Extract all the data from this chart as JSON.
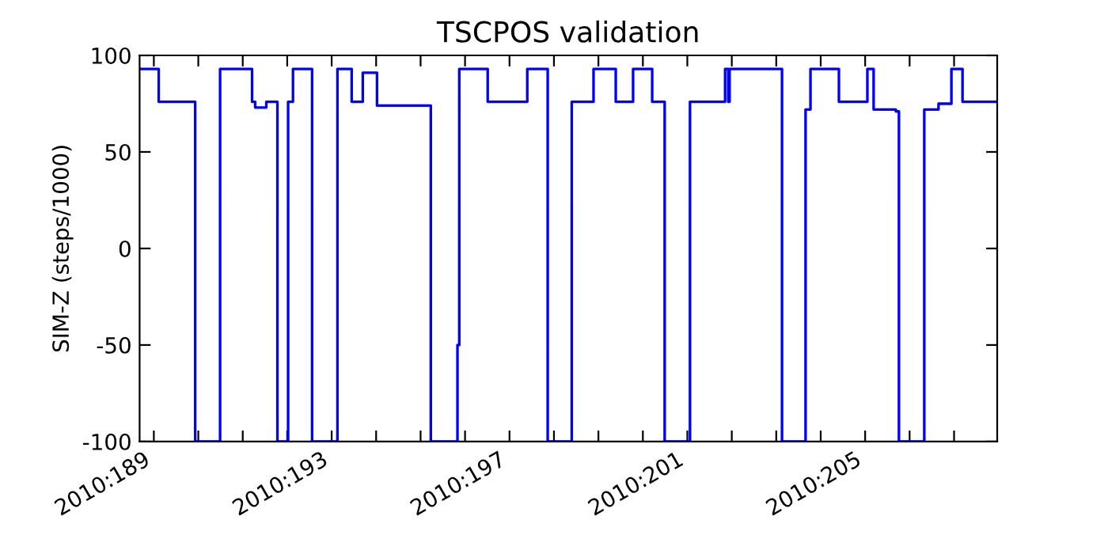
{
  "chart_data": {
    "type": "step",
    "title": "TSCPOS validation",
    "ylabel": "SIM-Z (steps/1000)",
    "x": [
      "2010-07-07T16:19",
      "2010-07-08T02:38",
      "2010-07-08T22:19",
      "2010-07-09T11:46",
      "2010-07-10T05:02",
      "2010-07-10T06:43",
      "2010-07-10T12:43",
      "2010-07-10T18:43",
      "2010-07-11T00:29",
      "2010-07-11T03:07",
      "2010-07-11T13:26",
      "2010-07-12T03:07",
      "2010-07-12T10:48",
      "2010-07-12T16:48",
      "2010-07-13T00:29",
      "2010-07-14T05:31",
      "2010-07-14T19:55",
      "2010-07-14T20:53",
      "2010-07-15T12:14",
      "2010-07-16T09:36",
      "2010-07-16T20:38",
      "2010-07-17T09:36",
      "2010-07-17T21:22",
      "2010-07-18T09:22",
      "2010-07-18T18:43",
      "2010-07-19T05:02",
      "2010-07-19T11:46",
      "2010-07-20T01:26",
      "2010-07-20T20:24",
      "2010-07-20T22:05",
      "2010-07-20T22:48",
      "2010-07-22T03:07",
      "2010-07-22T15:50",
      "2010-07-22T18:29",
      "2010-07-23T09:50",
      "2010-07-24T01:12",
      "2010-07-24T04:34",
      "2010-07-24T16:34",
      "2010-07-24T18:14",
      "2010-07-25T07:55",
      "2010-07-25T15:36",
      "2010-07-25T22:34",
      "2010-07-26T04:34",
      "2010-07-26T23:17"
    ],
    "series": [
      {
        "color": "#0000ff",
        "values": [
          93,
          76,
          -100,
          93,
          76,
          73,
          76,
          -100,
          76,
          93,
          -100,
          93,
          76,
          91,
          74,
          -100,
          -50,
          93,
          76,
          93,
          -100,
          76,
          93,
          76,
          93,
          76,
          -100,
          76,
          93,
          76,
          93,
          -100,
          72,
          93,
          76,
          93,
          72,
          71,
          -100,
          72,
          75,
          93,
          76,
          76
        ]
      }
    ],
    "xlim": [
      "2010-07-07T16:19",
      "2010-07-26T23:17"
    ],
    "ylim": [
      -100,
      100
    ],
    "yticks": [
      -100,
      -50,
      0,
      50,
      100
    ],
    "xticks": [
      {
        "value": "2010-07-08",
        "label": "2010:189"
      },
      {
        "value": "2010-07-09",
        "label": null
      },
      {
        "value": "2010-07-10",
        "label": null
      },
      {
        "value": "2010-07-11",
        "label": null
      },
      {
        "value": "2010-07-12",
        "label": "2010:193"
      },
      {
        "value": "2010-07-13",
        "label": null
      },
      {
        "value": "2010-07-14",
        "label": null
      },
      {
        "value": "2010-07-15",
        "label": null
      },
      {
        "value": "2010-07-16",
        "label": "2010:197"
      },
      {
        "value": "2010-07-17",
        "label": null
      },
      {
        "value": "2010-07-18",
        "label": null
      },
      {
        "value": "2010-07-19",
        "label": null
      },
      {
        "value": "2010-07-20",
        "label": "2010:201"
      },
      {
        "value": "2010-07-21",
        "label": null
      },
      {
        "value": "2010-07-22",
        "label": null
      },
      {
        "value": "2010-07-23",
        "label": null
      },
      {
        "value": "2010-07-24",
        "label": "2010:205"
      },
      {
        "value": "2010-07-25",
        "label": null
      },
      {
        "value": "2010-07-26",
        "label": null
      }
    ],
    "grid": false,
    "line_style": "solid",
    "marker": "none"
  }
}
